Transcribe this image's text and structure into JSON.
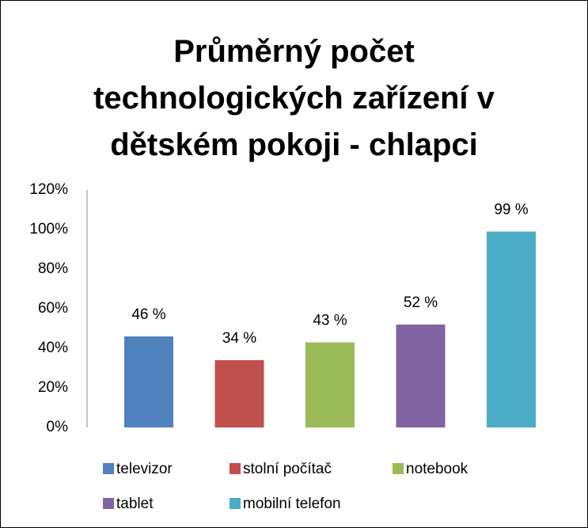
{
  "chart_data": {
    "type": "bar",
    "title": "Průměrný počet technologických zařízení v dětském pokoji - chlapci",
    "categories": [
      null
    ],
    "series": [
      {
        "name": "televizor",
        "color": "#4f81bd",
        "values": [
          46
        ],
        "value_labels": [
          "46 %"
        ]
      },
      {
        "name": "stolní počítač",
        "color": "#c0504d",
        "values": [
          34
        ],
        "value_labels": [
          "34 %"
        ]
      },
      {
        "name": "notebook",
        "color": "#9bbb59",
        "values": [
          43
        ],
        "value_labels": [
          "43 %"
        ]
      },
      {
        "name": "tablet",
        "color": "#8064a2",
        "values": [
          52
        ],
        "value_labels": [
          "52 %"
        ]
      },
      {
        "name": "mobilní telefon",
        "color": "#4bacc6",
        "values": [
          99
        ],
        "value_labels": [
          "99 %"
        ]
      }
    ],
    "ylim": [
      0,
      120
    ],
    "yticks": [
      {
        "value": 0,
        "label": "0%"
      },
      {
        "value": 20,
        "label": "20%"
      },
      {
        "value": 40,
        "label": "40%"
      },
      {
        "value": 60,
        "label": "60%"
      },
      {
        "value": 80,
        "label": "80%"
      },
      {
        "value": 100,
        "label": "100%"
      },
      {
        "value": 120,
        "label": "120%"
      }
    ],
    "grid": false,
    "legend": "bottom"
  }
}
